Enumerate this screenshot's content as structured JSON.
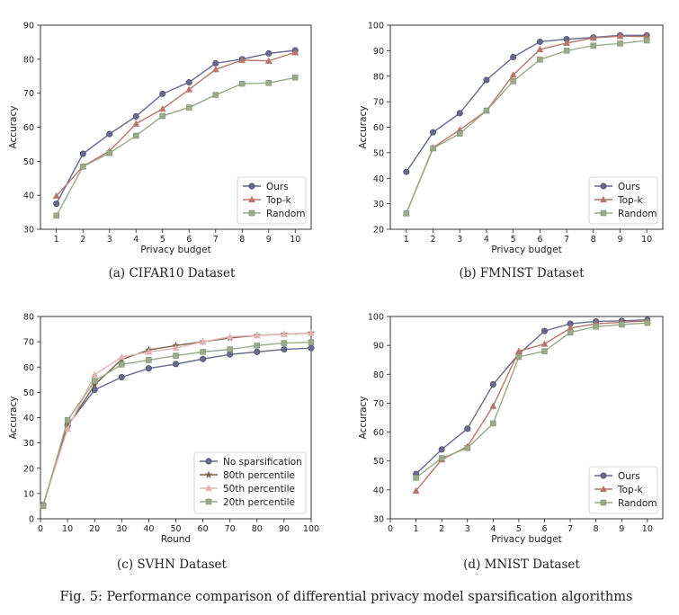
{
  "figure_caption": "Fig. 5: Performance comparison of differential privacy model sparsification algorithms",
  "chart_data": [
    {
      "type": "line",
      "caption": "(a) CIFAR10 Dataset",
      "xlabel": "Privacy budget",
      "ylabel": "Accuracy",
      "xlim": [
        0.4,
        10.6
      ],
      "ylim": [
        30,
        90
      ],
      "xticks": [
        1,
        2,
        3,
        4,
        5,
        6,
        7,
        8,
        9,
        10
      ],
      "yticks": [
        30,
        40,
        50,
        60,
        70,
        80,
        90
      ],
      "legend": "lower-right",
      "x": [
        1,
        2,
        3,
        4,
        5,
        6,
        7,
        8,
        9,
        10
      ],
      "series": [
        {
          "name": "Ours",
          "color": "#676a8c",
          "marker": "circle",
          "values": [
            37.5,
            52.2,
            58.0,
            63.2,
            69.8,
            73.2,
            78.8,
            80.0,
            81.7,
            82.6
          ]
        },
        {
          "name": "Top-k",
          "color": "#b5776c",
          "marker": "triangle",
          "values": [
            39.8,
            48.5,
            53.0,
            61.0,
            65.4,
            71.1,
            77.0,
            79.7,
            79.5,
            82.0
          ]
        },
        {
          "name": "Random",
          "color": "#9aaa8a",
          "marker": "square",
          "values": [
            34.0,
            48.4,
            52.4,
            57.5,
            63.3,
            65.8,
            69.5,
            72.8,
            73.0,
            74.6
          ]
        }
      ]
    },
    {
      "type": "line",
      "caption": "(b) FMNIST Dataset",
      "xlabel": "Privacy budget",
      "ylabel": "Accuracy",
      "xlim": [
        0.4,
        10.6
      ],
      "ylim": [
        20,
        100
      ],
      "xticks": [
        1,
        2,
        3,
        4,
        5,
        6,
        7,
        8,
        9,
        10
      ],
      "yticks": [
        20,
        30,
        40,
        50,
        60,
        70,
        80,
        90,
        100
      ],
      "legend": "lower-right",
      "x": [
        1,
        2,
        3,
        4,
        5,
        6,
        7,
        8,
        9,
        10
      ],
      "series": [
        {
          "name": "Ours",
          "color": "#676a8c",
          "marker": "circle",
          "values": [
            42.5,
            58.0,
            65.5,
            78.5,
            87.5,
            93.5,
            94.5,
            95.2,
            96.0,
            96.0
          ]
        },
        {
          "name": "Top-k",
          "color": "#b5776c",
          "marker": "triangle",
          "values": [
            26.3,
            52.0,
            59.0,
            66.5,
            80.5,
            90.5,
            93.0,
            95.0,
            95.7,
            95.5
          ]
        },
        {
          "name": "Random",
          "color": "#9aaa8a",
          "marker": "square",
          "values": [
            26.2,
            51.7,
            57.5,
            66.5,
            78.0,
            86.5,
            90.0,
            92.0,
            92.8,
            94.0
          ]
        }
      ]
    },
    {
      "type": "line",
      "caption": "(c) SVHN Dataset",
      "xlabel": "Round",
      "ylabel": "Accuracy",
      "xlim": [
        0,
        100
      ],
      "ylim": [
        0,
        80
      ],
      "xticks": [
        0,
        10,
        20,
        30,
        40,
        50,
        60,
        70,
        80,
        90,
        100
      ],
      "yticks": [
        0,
        10,
        20,
        30,
        40,
        50,
        60,
        70,
        80
      ],
      "legend": "lower-right",
      "x": [
        1,
        10,
        20,
        30,
        40,
        50,
        60,
        70,
        80,
        90,
        100
      ],
      "series": [
        {
          "name": "No sparsification",
          "color": "#676a8c",
          "marker": "circle",
          "values": [
            5.5,
            37.0,
            51.0,
            56.0,
            59.5,
            61.2,
            63.2,
            65.0,
            66.0,
            67.0,
            67.5
          ]
        },
        {
          "name": "80th percentile",
          "color": "#7a6448",
          "marker": "star",
          "values": [
            5.5,
            36.5,
            53.0,
            63.0,
            66.8,
            68.5,
            70.0,
            71.5,
            72.5,
            73.0,
            73.5
          ]
        },
        {
          "name": "50th percentile",
          "color": "#e3b3b3",
          "marker": "triangle",
          "values": [
            5.5,
            35.5,
            57.0,
            64.0,
            66.0,
            67.5,
            70.0,
            72.0,
            72.5,
            73.0,
            73.5
          ]
        },
        {
          "name": "20th percentile",
          "color": "#9aaa8a",
          "marker": "square",
          "values": [
            5.0,
            39.0,
            54.5,
            61.0,
            62.8,
            64.5,
            66.0,
            67.0,
            68.5,
            69.5,
            69.8
          ]
        }
      ]
    },
    {
      "type": "line",
      "caption": "(d) MNIST Dataset",
      "xlabel": "Privacy budget",
      "ylabel": "Accuracy",
      "xlim": [
        0,
        10.6
      ],
      "ylim": [
        30,
        100
      ],
      "xticks": [
        0,
        1,
        2,
        3,
        4,
        5,
        6,
        7,
        8,
        9,
        10
      ],
      "yticks": [
        30,
        40,
        50,
        60,
        70,
        80,
        90,
        100
      ],
      "legend": "lower-right",
      "x": [
        1,
        2,
        3,
        4,
        5,
        6,
        7,
        8,
        9,
        10
      ],
      "series": [
        {
          "name": "Ours",
          "color": "#676a8c",
          "marker": "circle",
          "values": [
            45.5,
            54.0,
            61.2,
            76.5,
            87.0,
            95.0,
            97.5,
            98.3,
            98.5,
            98.8
          ]
        },
        {
          "name": "Top-k",
          "color": "#b5776c",
          "marker": "triangle",
          "values": [
            39.7,
            50.5,
            55.0,
            69.0,
            88.0,
            90.5,
            96.0,
            97.5,
            98.0,
            98.5
          ]
        },
        {
          "name": "Random",
          "color": "#9aaa8a",
          "marker": "square",
          "values": [
            44.2,
            51.0,
            54.5,
            63.0,
            86.0,
            88.0,
            94.5,
            96.5,
            97.2,
            97.8
          ]
        }
      ]
    }
  ]
}
